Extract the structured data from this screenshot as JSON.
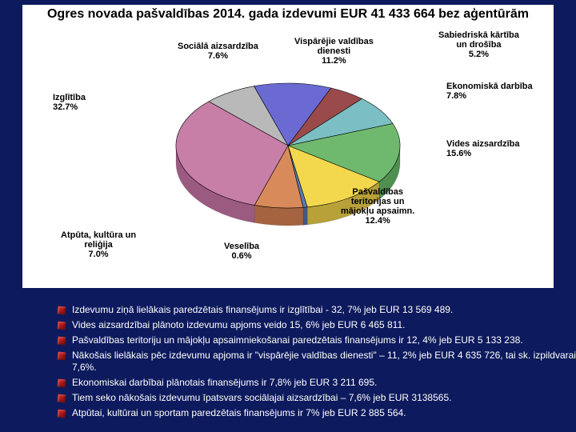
{
  "chart": {
    "type": "pie",
    "title": "Ogres novada pašvaldības 2014. gada izdevumi EUR 41 433 664\nbez aģentūrām",
    "title_fontsize": 16,
    "background_color": "#0d1a5d",
    "card_color": "#ffffff",
    "slices": [
      {
        "label": "Izglītība",
        "pct": 32.7,
        "color": "#c77ea7",
        "side_color": "#9b5a80"
      },
      {
        "label": "Vides aizsardzība",
        "pct": 15.6,
        "color": "#6fb96f",
        "side_color": "#4f8f4f"
      },
      {
        "label": "Pašvaldības teritorijas un mājokļu apsaimn.",
        "pct": 12.4,
        "color": "#f3d84d",
        "side_color": "#b7a138"
      },
      {
        "label": "Vispārējie valdības dienesti",
        "pct": 11.2,
        "color": "#6a6ad2",
        "side_color": "#4646a3"
      },
      {
        "label": "Ekonomiskā darbība",
        "pct": 7.8,
        "color": "#7bbfc4",
        "side_color": "#5a9398"
      },
      {
        "label": "Sociālā aizsardzība",
        "pct": 7.6,
        "color": "#b9b9b9",
        "side_color": "#8c8c8c"
      },
      {
        "label": "Atpūta, kultūra un reliģija",
        "pct": 7.0,
        "color": "#d98a5a",
        "side_color": "#a6633f"
      },
      {
        "label": "Sabiedriskā kārtība un drošība",
        "pct": 5.2,
        "color": "#9a4a4a",
        "side_color": "#6d3333"
      },
      {
        "label": "Veselība",
        "pct": 0.6,
        "color": "#5a7bb5",
        "side_color": "#3f5a8a"
      }
    ],
    "label_fontsize": 11,
    "tilt_height": 22,
    "label_texts": {
      "izglitiba": "Izglītība\n32.7%",
      "vides": "Vides aizsardzība\n15.6%",
      "pasvald": "Pašvaldības\nteritorijas un\nmājokļu apsaimn.\n12.4%",
      "visparejie": "Vispārējie valdības\ndienesti\n11.2%",
      "ekonom": "Ekonomiskā darbība\n7.8%",
      "sociala": "Sociālā aizsardzība\n7.6%",
      "atputa": "Atpūta, kultūra un\nreliģija\n7.0%",
      "sabiedr": "Sabiedriskā kārtība\nun drošība\n5.2%",
      "veseliba": "Veselība\n0.6%"
    }
  },
  "bullets": {
    "fontsize": 12,
    "color": "#ffffff",
    "bullet_color": "#b01a1a",
    "items": [
      "Izdevumu ziņā lielākais paredzētais finansējums ir izglītībai - 32, 7% jeb EUR 13 569 489.",
      "Vides aizsardzībai plānoto izdevumu apjoms veido 15, 6% jeb EUR 6 465 811.",
      "Pašvaldības teritoriju un mājokļu apsaimniekošanai paredzētais finansējums ir 12, 4% jeb EUR 5 133 238.",
      "Nākošais lielākais pēc izdevumu apjoma ir \"vispārējie valdības dienesti\" – 11, 2% jeb EUR 4 635 726, tai sk. izpildvarai 7,6%.",
      "Ekonomiskai darbībai plānotais finansējums ir 7,8% jeb EUR 3 211 695.",
      "Tiem seko nākošais izdevumu īpatsvars sociālajai aizsardzībai – 7,6% jeb EUR 3138565.",
      "Atpūtai, kultūrai un sportam paredzētais finansējums ir 7% jeb EUR 2 885 564."
    ]
  }
}
